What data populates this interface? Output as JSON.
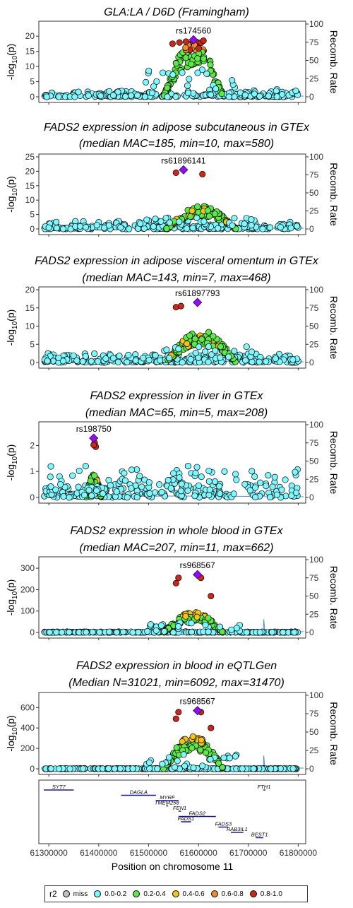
{
  "chart_data": [
    {
      "type": "scatter",
      "title_lines": [
        "GLA:LA / D6D (Framingham)"
      ],
      "ylabel": "-log10(p)",
      "y2label": "Recomb. Rate",
      "yticks": [
        0,
        5,
        10,
        15,
        20
      ],
      "ylim": [
        0,
        24
      ],
      "y2ticks": [
        0,
        25,
        50,
        75,
        100
      ],
      "lead_snp": "rs174560",
      "lead": {
        "x": 61590000,
        "y": 18.8
      },
      "peak": {
        "center": 61590000,
        "height": 18.5,
        "width": 60000
      },
      "red_points": [
        [
          61548000,
          17.5
        ],
        [
          61562000,
          17.9
        ],
        [
          61575000,
          18.2
        ],
        [
          61605000,
          17.8
        ],
        [
          61610000,
          18.5
        ]
      ],
      "baseline": 1.2
    },
    {
      "type": "scatter",
      "title_lines": [
        "FADS2 expression in adipose subcutaneous in GTEx",
        "(median MAC=185, min=10, max=580)"
      ],
      "ylabel": "-log10(p)",
      "y2label": "Recomb. Rate",
      "yticks": [
        0,
        5,
        10,
        15,
        20,
        25
      ],
      "ylim": [
        0,
        25
      ],
      "y2ticks": [
        0,
        25,
        50,
        75,
        100
      ],
      "lead_snp": "rs61896141",
      "lead": {
        "x": 61570000,
        "y": 20.5
      },
      "peak": {
        "center": 61605000,
        "height": 8,
        "width": 70000
      },
      "red_points": [
        [
          61555000,
          19.5
        ],
        [
          61608000,
          19.0
        ]
      ],
      "baseline": 1.5
    },
    {
      "type": "scatter",
      "title_lines": [
        "FADS2 expression in adipose visceral omentum in GTEx",
        "(median MAC=143, min=7, max=468)"
      ],
      "ylabel": "-log10(p)",
      "y2label": "Recomb. Rate",
      "yticks": [
        0,
        5,
        10,
        15,
        20
      ],
      "ylim": [
        0,
        20
      ],
      "y2ticks": [
        0,
        25,
        50,
        75,
        100
      ],
      "lead_snp": "rs61897793",
      "lead": {
        "x": 61598000,
        "y": 16.5
      },
      "peak": {
        "center": 61605000,
        "height": 9,
        "width": 70000
      },
      "red_points": [
        [
          61555000,
          15.2
        ],
        [
          61565000,
          15.5
        ]
      ],
      "baseline": 1.3
    },
    {
      "type": "scatter",
      "title_lines": [
        "FADS2 expression in liver in GTEx",
        "(median MAC=65, min=5, max=208)"
      ],
      "ylabel": "-log10(p)",
      "y2label": "Recomb. Rate",
      "yticks": [
        0,
        1,
        2
      ],
      "ylim": [
        0,
        2.8
      ],
      "y2ticks": [
        0,
        25,
        50,
        75,
        100
      ],
      "lead_snp": "rs198750",
      "lead": {
        "x": 61390000,
        "y": 2.28
      },
      "peak": {
        "center": 61390000,
        "height": 0.9,
        "width": 15000
      },
      "red_points": [
        [
          61392000,
          2.1
        ],
        [
          61394000,
          1.95
        ],
        [
          61390000,
          2.02
        ]
      ],
      "baseline": 0.6
    },
    {
      "type": "scatter",
      "title_lines": [
        "FADS2 expression in whole blood in GTEx",
        "(median MAC=207, min=11, max=662)"
      ],
      "ylabel": "-log10(p)",
      "y2label": "Recomb. Rate",
      "yticks": [
        0,
        100,
        200,
        300
      ],
      "ylim": [
        0,
        340
      ],
      "y2ticks": [
        0,
        25,
        50,
        75,
        100
      ],
      "lead_snp": "rs968567",
      "lead": {
        "x": 61598000,
        "y": 270
      },
      "peak": {
        "center": 61590000,
        "height": 95,
        "width": 60000
      },
      "red_points": [
        [
          61555000,
          230
        ],
        [
          61560000,
          255
        ],
        [
          61605000,
          255
        ],
        [
          61625000,
          170
        ]
      ],
      "baseline": 2
    },
    {
      "type": "scatter",
      "title_lines": [
        "FADS2 expression in blood in eQTLGen",
        "(Median N=31021, min=6092, max=31470)"
      ],
      "ylabel": "-log10(p)",
      "y2label": "Recomb. Rate",
      "yticks": [
        0,
        200,
        400,
        600
      ],
      "ylim": [
        0,
        720
      ],
      "y2ticks": [
        0,
        25,
        50,
        75,
        100
      ],
      "lead_snp": "rs968567",
      "lead": {
        "x": 61598000,
        "y": 570
      },
      "peak": {
        "center": 61590000,
        "height": 330,
        "width": 60000
      },
      "red_points": [
        [
          61555000,
          490
        ],
        [
          61560000,
          555
        ],
        [
          61605000,
          555
        ],
        [
          61625000,
          400
        ]
      ],
      "baseline": 2
    }
  ],
  "genes": [
    {
      "name": "SYT7",
      "start": 61290000,
      "end": 61350000,
      "row": 0
    },
    {
      "name": "FTH1",
      "start": 61730000,
      "end": 61733000,
      "row": 0
    },
    {
      "name": "DAGLA",
      "start": 61445000,
      "end": 61515000,
      "row": 1
    },
    {
      "name": "MYRF",
      "start": 61515000,
      "end": 61560000,
      "row": 2
    },
    {
      "name": "TMEM258",
      "start": 61535000,
      "end": 61538000,
      "row": 3
    },
    {
      "name": "FEN1",
      "start": 61560000,
      "end": 61565000,
      "row": 4
    },
    {
      "name": "FADS2",
      "start": 61560000,
      "end": 61635000,
      "row": 5
    },
    {
      "name": "FADS1",
      "start": 61565000,
      "end": 61585000,
      "row": 6
    },
    {
      "name": "FADS3",
      "start": 61640000,
      "end": 61660000,
      "row": 7
    },
    {
      "name": "RAB3IL1",
      "start": 61665000,
      "end": 61690000,
      "row": 8
    },
    {
      "name": "BEST1",
      "start": 61715000,
      "end": 61730000,
      "row": 9
    }
  ],
  "xaxis": {
    "label": "Position on chromosome 11",
    "ticks": [
      61300000,
      61400000,
      61500000,
      61600000,
      61700000,
      61800000
    ],
    "range": [
      61280000,
      61815000
    ]
  },
  "legend": {
    "title": "r2",
    "items": [
      {
        "label": "miss",
        "color": "#bfbfbf"
      },
      {
        "label": "0.0-0.2",
        "color": "#7ff7ff"
      },
      {
        "label": "0.2-0.4",
        "color": "#5fe84a"
      },
      {
        "label": "0.4-0.6",
        "color": "#f6c31b"
      },
      {
        "label": "0.6-0.8",
        "color": "#f28b2f"
      },
      {
        "label": "0.8-1.0",
        "color": "#c8281a"
      }
    ],
    "lead_color": "#8a12e6"
  }
}
